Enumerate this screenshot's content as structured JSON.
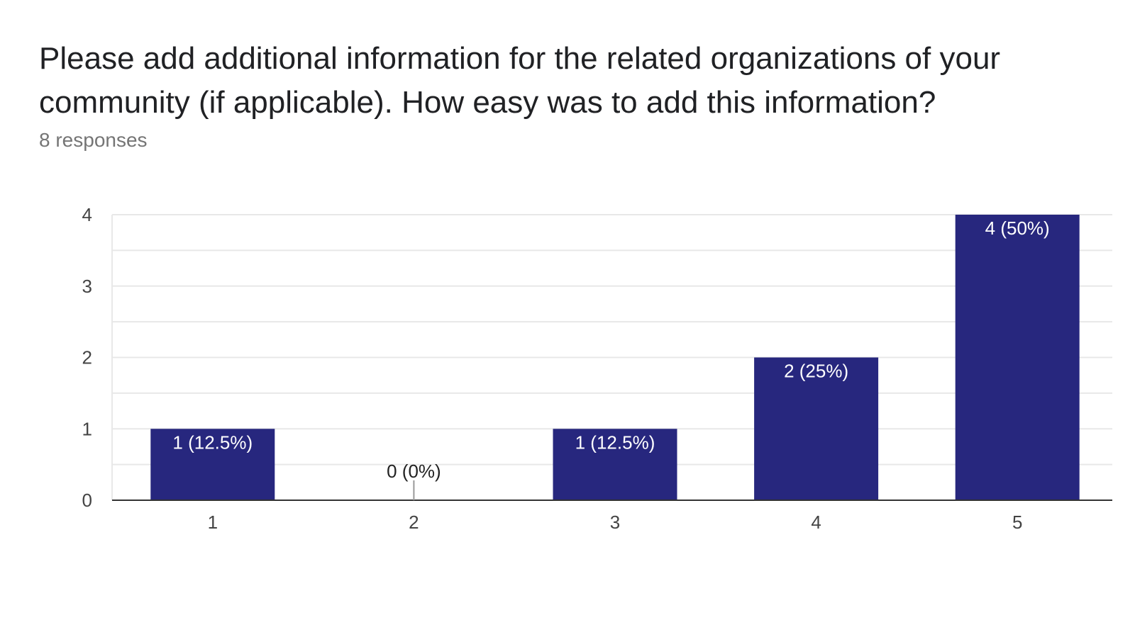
{
  "question": {
    "title": "Please add additional information for the related organizations of your community (if applicable). How easy was to add this information?",
    "responses": "8 responses"
  },
  "colors": {
    "bar": "#27277e",
    "grid": "#e8e8e8",
    "baseline": "#333333"
  },
  "chart_data": {
    "type": "bar",
    "categories": [
      "1",
      "2",
      "3",
      "4",
      "5"
    ],
    "values": [
      1,
      0,
      1,
      2,
      4
    ],
    "data_labels": [
      "1 (12.5%)",
      "0 (0%)",
      "1 (12.5%)",
      "2 (25%)",
      "4 (50%)"
    ],
    "yticks": [
      0,
      1,
      2,
      3,
      4
    ],
    "ylim": [
      0,
      4
    ],
    "grid": true,
    "legend": "none"
  }
}
